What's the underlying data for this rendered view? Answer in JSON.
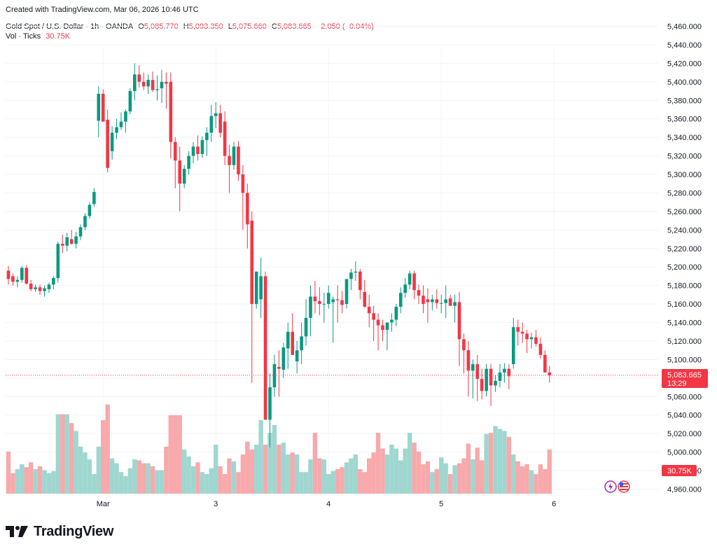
{
  "created_line": "Created with TradingView.com, Mar 06, 2026 10:46 UTC",
  "symbol": {
    "name": "Gold Spot / U.S. Dollar · 1h · OANDA",
    "open_label": "O",
    "open": "5,085.770",
    "high_label": "H",
    "high": "5,093.350",
    "low_label": "L",
    "low": "5,075.660",
    "close_label": "C",
    "close": "5,083.665",
    "change": "−2.050 (−0.04%)"
  },
  "volume": {
    "label": "Vol · Ticks",
    "value": "30.75K"
  },
  "price_label": {
    "price": "5,083.665",
    "countdown": "13:29"
  },
  "volume_badge": "30.75K",
  "logo_text": "TradingView",
  "colors": {
    "up": "#089981",
    "down": "#f23645",
    "up_vol": "#9fd7d0",
    "down_vol": "#f7a9ab",
    "grid": "#f0f3fa"
  },
  "chart_data": {
    "type": "candlestick",
    "title": "Gold Spot / U.S. Dollar · 1h · OANDA",
    "y_ticks": [
      "5,460.000",
      "5,440.000",
      "5,420.000",
      "5,400.000",
      "5,380.000",
      "5,360.000",
      "5,340.000",
      "5,320.000",
      "5,300.000",
      "5,280.000",
      "5,260.000",
      "5,240.000",
      "5,220.000",
      "5,200.000",
      "5,180.000",
      "5,160.000",
      "5,140.000",
      "5,120.000",
      "5,100.000",
      "5,080.000",
      "5,060.000",
      "5,040.000",
      "5,020.000",
      "5,000.000",
      "4,980.000",
      "4,960.000"
    ],
    "ylim": [
      4950,
      5475
    ],
    "x_ticks": [
      {
        "label": "Mar",
        "bar": 21
      },
      {
        "label": "3",
        "bar": 46
      },
      {
        "label": "4",
        "bar": 71
      },
      {
        "label": "5",
        "bar": 96
      },
      {
        "label": "6",
        "bar": 121
      }
    ],
    "volume_scale_max": 100,
    "bars": [
      [
        5196,
        5201,
        5181,
        5187,
        43
      ],
      [
        5190,
        5193,
        5180,
        5184,
        21
      ],
      [
        5184,
        5190,
        5178,
        5186,
        25
      ],
      [
        5186,
        5201,
        5183,
        5199,
        30
      ],
      [
        5199,
        5202,
        5181,
        5182,
        27
      ],
      [
        5182,
        5186,
        5174,
        5176,
        32
      ],
      [
        5176,
        5181,
        5173,
        5178,
        25
      ],
      [
        5178,
        5181,
        5170,
        5174,
        28
      ],
      [
        5174,
        5180,
        5168,
        5177,
        24
      ],
      [
        5176,
        5183,
        5172,
        5181,
        21
      ],
      [
        5181,
        5190,
        5176,
        5188,
        23
      ],
      [
        5188,
        5227,
        5183,
        5225,
        81
      ],
      [
        5225,
        5235,
        5215,
        5223,
        81
      ],
      [
        5223,
        5237,
        5217,
        5232,
        81
      ],
      [
        5230,
        5240,
        5224,
        5225,
        72
      ],
      [
        5225,
        5238,
        5220,
        5233,
        64
      ],
      [
        5233,
        5246,
        5229,
        5243,
        48
      ],
      [
        5243,
        5258,
        5240,
        5255,
        42
      ],
      [
        5255,
        5270,
        5252,
        5267,
        35
      ],
      [
        5268,
        5285,
        5265,
        5281,
        20
      ],
      [
        5358,
        5395,
        5340,
        5387,
        48
      ],
      [
        5387,
        5392,
        5357,
        5357,
        75
      ],
      [
        5359,
        5370,
        5302,
        5307,
        91
      ],
      [
        5325,
        5352,
        5316,
        5345,
        36
      ],
      [
        5345,
        5360,
        5338,
        5351,
        31
      ],
      [
        5351,
        5367,
        5348,
        5357,
        22
      ],
      [
        5357,
        5370,
        5345,
        5368,
        18
      ],
      [
        5368,
        5393,
        5365,
        5390,
        26
      ],
      [
        5390,
        5420,
        5380,
        5408,
        35
      ],
      [
        5408,
        5418,
        5394,
        5400,
        34
      ],
      [
        5400,
        5410,
        5391,
        5395,
        31
      ],
      [
        5395,
        5408,
        5387,
        5402,
        31
      ],
      [
        5402,
        5411,
        5389,
        5391,
        28
      ],
      [
        5391,
        5407,
        5380,
        5392,
        24
      ],
      [
        5393,
        5413,
        5377,
        5400,
        24
      ],
      [
        5400,
        5410,
        5371,
        5398,
        48
      ],
      [
        5400,
        5410,
        5317,
        5335,
        80
      ],
      [
        5335,
        5340,
        5285,
        5315,
        80
      ],
      [
        5315,
        5330,
        5260,
        5290,
        80
      ],
      [
        5290,
        5310,
        5285,
        5306,
        45
      ],
      [
        5306,
        5325,
        5300,
        5320,
        38
      ],
      [
        5320,
        5335,
        5312,
        5330,
        28
      ],
      [
        5330,
        5342,
        5315,
        5322,
        32
      ],
      [
        5322,
        5341,
        5318,
        5337,
        22
      ],
      [
        5337,
        5351,
        5320,
        5345,
        20
      ],
      [
        5345,
        5375,
        5335,
        5363,
        26
      ],
      [
        5363,
        5378,
        5350,
        5366,
        50
      ],
      [
        5366,
        5375,
        5340,
        5345,
        28
      ],
      [
        5357,
        5368,
        5310,
        5320,
        20
      ],
      [
        5320,
        5332,
        5280,
        5310,
        36
      ],
      [
        5310,
        5335,
        5305,
        5330,
        33
      ],
      [
        5330,
        5336,
        5293,
        5300,
        22
      ],
      [
        5300,
        5310,
        5240,
        5280,
        40
      ],
      [
        5280,
        5290,
        5220,
        5246,
        53
      ],
      [
        5250,
        5260,
        5075,
        5160,
        45
      ],
      [
        5160,
        5195,
        5155,
        5195,
        50
      ],
      [
        5165,
        5210,
        5145,
        5190,
        75
      ],
      [
        5190,
        5195,
        5040,
        5035,
        50
      ],
      [
        5035,
        5085,
        5005,
        5070,
        62
      ],
      [
        5070,
        5105,
        5060,
        5095,
        70
      ],
      [
        5092,
        5110,
        5060,
        5090,
        50
      ],
      [
        5089,
        5118,
        5080,
        5113,
        52
      ],
      [
        5112,
        5140,
        5090,
        5130,
        40
      ],
      [
        5130,
        5150,
        5105,
        5105,
        42
      ],
      [
        5098,
        5120,
        5085,
        5110,
        40
      ],
      [
        5110,
        5140,
        5095,
        5125,
        22
      ],
      [
        5125,
        5165,
        5115,
        5145,
        22
      ],
      [
        5145,
        5180,
        5125,
        5168,
        35
      ],
      [
        5168,
        5185,
        5150,
        5163,
        62
      ],
      [
        5163,
        5178,
        5148,
        5160,
        36
      ],
      [
        5160,
        5172,
        5140,
        5160,
        35
      ],
      [
        5160,
        5180,
        5155,
        5172,
        20
      ],
      [
        5162,
        5168,
        5118,
        5165,
        23
      ],
      [
        5165,
        5180,
        5140,
        5164,
        25
      ],
      [
        5164,
        5174,
        5150,
        5159,
        27
      ],
      [
        5160,
        5183,
        5155,
        5187,
        32
      ],
      [
        5187,
        5198,
        5175,
        5194,
        36
      ],
      [
        5194,
        5206,
        5185,
        5195,
        40
      ],
      [
        5195,
        5198,
        5165,
        5175,
        25
      ],
      [
        5173,
        5186,
        5156,
        5157,
        22
      ],
      [
        5157,
        5170,
        5135,
        5150,
        36
      ],
      [
        5150,
        5158,
        5120,
        5143,
        42
      ],
      [
        5143,
        5150,
        5110,
        5137,
        62
      ],
      [
        5137,
        5143,
        5120,
        5132,
        46
      ],
      [
        5132,
        5140,
        5110,
        5140,
        40
      ],
      [
        5140,
        5150,
        5130,
        5143,
        50
      ],
      [
        5143,
        5160,
        5136,
        5157,
        46
      ],
      [
        5157,
        5178,
        5150,
        5172,
        34
      ],
      [
        5172,
        5188,
        5167,
        5181,
        46
      ],
      [
        5181,
        5196,
        5176,
        5193,
        62
      ],
      [
        5193,
        5196,
        5165,
        5175,
        52
      ],
      [
        5175,
        5181,
        5160,
        5169,
        43
      ],
      [
        5169,
        5180,
        5150,
        5160,
        30
      ],
      [
        5165,
        5177,
        5140,
        5162,
        33
      ],
      [
        5162,
        5170,
        5153,
        5165,
        22
      ],
      [
        5165,
        5176,
        5155,
        5161,
        25
      ],
      [
        5161,
        5170,
        5150,
        5161,
        37
      ],
      [
        5161,
        5180,
        5145,
        5165,
        31
      ],
      [
        5166,
        5170,
        5159,
        5158,
        20
      ],
      [
        5158,
        5170,
        5140,
        5162,
        29
      ],
      [
        5162,
        5173,
        5093,
        5122,
        31
      ],
      [
        5122,
        5128,
        5085,
        5110,
        36
      ],
      [
        5110,
        5120,
        5060,
        5088,
        51
      ],
      [
        5088,
        5100,
        5058,
        5095,
        35
      ],
      [
        5095,
        5105,
        5055,
        5079,
        47
      ],
      [
        5079,
        5090,
        5057,
        5066,
        34
      ],
      [
        5066,
        5095,
        5060,
        5090,
        61
      ],
      [
        5090,
        5095,
        5050,
        5072,
        62
      ],
      [
        5072,
        5083,
        5065,
        5077,
        69
      ],
      [
        5077,
        5095,
        5070,
        5086,
        66
      ],
      [
        5086,
        5096,
        5075,
        5090,
        64
      ],
      [
        5090,
        5095,
        5068,
        5082,
        58
      ],
      [
        5095,
        5145,
        5090,
        5135,
        40
      ],
      [
        5135,
        5143,
        5115,
        5130,
        33
      ],
      [
        5130,
        5140,
        5118,
        5128,
        28
      ],
      [
        5128,
        5132,
        5107,
        5122,
        30
      ],
      [
        5122,
        5129,
        5112,
        5124,
        24
      ],
      [
        5124,
        5132,
        5114,
        5117,
        20
      ],
      [
        5117,
        5124,
        5101,
        5105,
        30
      ],
      [
        5105,
        5110,
        5090,
        5086,
        25
      ],
      [
        5086,
        5093,
        5075,
        5083,
        45
      ]
    ]
  }
}
